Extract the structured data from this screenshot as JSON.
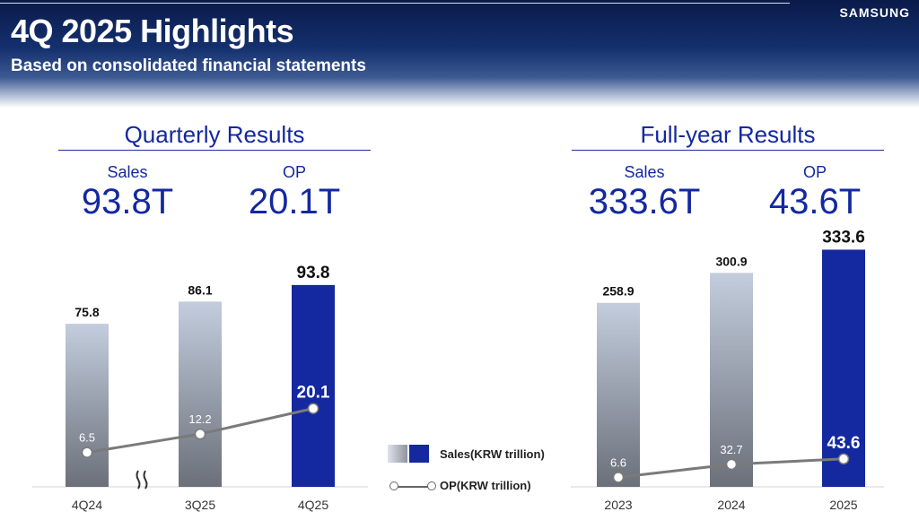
{
  "header": {
    "title": "4Q 2025 Highlights",
    "subtitle": "Based on consolidated financial statements",
    "brand": "SAMSUNG"
  },
  "quarterly": {
    "title": "Quarterly Results",
    "sales_label": "Sales",
    "sales_value": "93.8T",
    "op_label": "OP",
    "op_value": "20.1T"
  },
  "fullyear": {
    "title": "Full-year Results",
    "sales_label": "Sales",
    "sales_value": "333.6T",
    "op_label": "OP",
    "op_value": "43.6T"
  },
  "legend": {
    "sales": "Sales(KRW trillion)",
    "op": "OP(KRW trillion)"
  },
  "colors": {
    "accent_blue": "#1428a0",
    "grey_bar_top": "#c3cddd",
    "grey_bar_bottom": "#6b707a",
    "op_line": "#7a7a7a"
  },
  "chart_data": [
    {
      "type": "bar",
      "title": "Quarterly Results",
      "categories": [
        "4Q24",
        "3Q25",
        "4Q25"
      ],
      "axis_break_after": "4Q24",
      "series": [
        {
          "name": "Sales(KRW trillion)",
          "values": [
            75.8,
            86.1,
            93.8
          ],
          "highlight_last": true
        },
        {
          "name": "OP(KRW trillion)",
          "type": "line",
          "values": [
            6.5,
            12.2,
            20.1
          ]
        }
      ]
    },
    {
      "type": "bar",
      "title": "Full-year Results",
      "categories": [
        "2023",
        "2024",
        "2025"
      ],
      "series": [
        {
          "name": "Sales(KRW trillion)",
          "values": [
            258.9,
            300.9,
            333.6
          ],
          "highlight_last": true
        },
        {
          "name": "OP(KRW trillion)",
          "type": "line",
          "values": [
            6.6,
            32.7,
            43.6
          ]
        }
      ]
    }
  ]
}
